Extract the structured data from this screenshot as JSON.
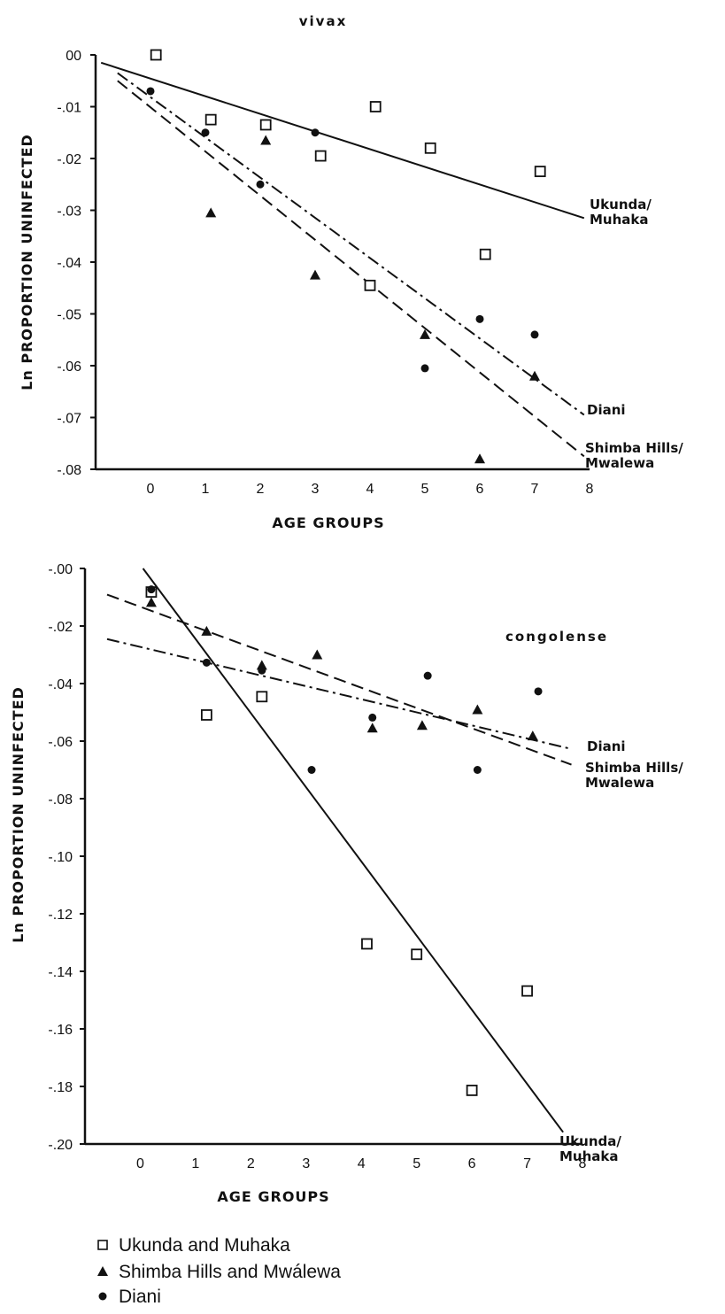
{
  "chart_data": [
    {
      "type": "scatter",
      "title": "vivax",
      "xlabel": "AGE GROUPS",
      "ylabel": "Ln PROPORTION UNINFECTED",
      "xlim": [
        -1,
        8
      ],
      "ylim": [
        -0.08,
        0.0
      ],
      "x_ticks": [
        "0",
        "1",
        "2",
        "3",
        "4",
        "5",
        "6",
        "7",
        "8"
      ],
      "y_ticks": [
        "00",
        "-.01",
        "-.02",
        "-.03",
        "-.04",
        "-.05",
        "-.06",
        "-.07",
        "-.08"
      ],
      "grid": false,
      "series": [
        {
          "name": "Ukunda and Muhaka",
          "marker": "open-square",
          "points": [
            [
              0.1,
              0.0
            ],
            [
              1.1,
              -0.0125
            ],
            [
              2.1,
              -0.0135
            ],
            [
              3.1,
              -0.0195
            ],
            [
              4.1,
              -0.01
            ],
            [
              5.1,
              -0.018
            ],
            [
              6.1,
              -0.0385
            ],
            [
              7.1,
              -0.0225
            ],
            [
              4.0,
              -0.0445
            ]
          ]
        },
        {
          "name": "Shimba Hills and Mwalewa",
          "marker": "filled-triangle",
          "points": [
            [
              1.1,
              -0.0305
            ],
            [
              2.1,
              -0.0165
            ],
            [
              3.0,
              -0.0425
            ],
            [
              5.0,
              -0.054
            ],
            [
              6.0,
              -0.078
            ],
            [
              7.0,
              -0.062
            ]
          ]
        },
        {
          "name": "Diani",
          "marker": "filled-circle",
          "points": [
            [
              0.0,
              -0.007
            ],
            [
              1.0,
              -0.015
            ],
            [
              2.0,
              -0.025
            ],
            [
              3.0,
              -0.015
            ],
            [
              5.0,
              -0.0605
            ],
            [
              6.0,
              -0.051
            ],
            [
              7.0,
              -0.054
            ]
          ]
        }
      ],
      "fit_lines": [
        {
          "label_lines": [
            "Ukunda/",
            "Muhaka"
          ],
          "style": "solid",
          "from": [
            -0.9,
            -0.0015
          ],
          "to": [
            7.9,
            -0.0315
          ]
        },
        {
          "label_lines": [
            "Diani"
          ],
          "style": "dash-dot",
          "from": [
            -0.6,
            -0.0035
          ],
          "to": [
            7.9,
            -0.0695
          ]
        },
        {
          "label_lines": [
            "Shimba Hills/",
            "Mwalewa"
          ],
          "style": "dashed",
          "from": [
            -0.6,
            -0.005
          ],
          "to": [
            7.9,
            -0.0775
          ]
        }
      ]
    },
    {
      "type": "scatter",
      "title": "congolense",
      "xlabel": "AGE GROUPS",
      "ylabel": "Ln PROPORTION UNINFECTED",
      "xlim": [
        -1,
        8
      ],
      "ylim": [
        -0.22,
        0.0
      ],
      "x_ticks": [
        "0",
        "1",
        "2",
        "3",
        "4",
        "5",
        "6",
        "7",
        "8"
      ],
      "y_ticks": [
        "-.00",
        "-.02",
        "-.04",
        "-.06",
        "-.08",
        "-.10",
        "-.12",
        "-.14",
        "-.16",
        "-.18",
        "-.20"
      ],
      "grid": false,
      "series": [
        {
          "name": "Ukunda and Muhaka",
          "marker": "open-square",
          "points": [
            [
              0.2,
              -0.009
            ],
            [
              1.2,
              -0.056
            ],
            [
              2.2,
              -0.049
            ],
            [
              4.1,
              -0.1435
            ],
            [
              5.0,
              -0.1475
            ],
            [
              6.0,
              -0.1995
            ],
            [
              7.0,
              -0.1615
            ]
          ]
        },
        {
          "name": "Shimba Hills and Mwalewa",
          "marker": "filled-triangle",
          "points": [
            [
              0.2,
              -0.013
            ],
            [
              1.2,
              -0.024
            ],
            [
              2.2,
              -0.037
            ],
            [
              3.2,
              -0.033
            ],
            [
              4.2,
              -0.061
            ],
            [
              5.1,
              -0.06
            ],
            [
              6.1,
              -0.054
            ],
            [
              7.1,
              -0.064
            ]
          ]
        },
        {
          "name": "Diani",
          "marker": "filled-circle",
          "points": [
            [
              0.2,
              -0.008
            ],
            [
              1.2,
              -0.036
            ],
            [
              2.2,
              -0.039
            ],
            [
              3.1,
              -0.077
            ],
            [
              4.2,
              -0.057
            ],
            [
              5.2,
              -0.041
            ],
            [
              6.1,
              -0.077
            ],
            [
              7.2,
              -0.047
            ]
          ]
        }
      ],
      "fit_lines": [
        {
          "label_lines": [
            "Ukunda/",
            "Muhaka"
          ],
          "style": "solid",
          "from": [
            0.05,
            0.0
          ],
          "to": [
            7.65,
            -0.2155
          ]
        },
        {
          "label_lines": [
            "Diani"
          ],
          "style": "dash-dot",
          "from": [
            -0.6,
            -0.027
          ],
          "to": [
            7.8,
            -0.069
          ]
        },
        {
          "label_lines": [
            "Shimba Hills/",
            "Mwalewa"
          ],
          "style": "dashed",
          "from": [
            -0.6,
            -0.01
          ],
          "to": [
            7.8,
            -0.075
          ]
        }
      ]
    }
  ],
  "legend": [
    {
      "label": "Ukunda and Muhaka",
      "marker": "open-square"
    },
    {
      "label": "Shimba Hills and Mwálewa",
      "marker": "filled-triangle"
    },
    {
      "label": "Diani",
      "marker": "filled-circle"
    }
  ],
  "colors": {
    "ink": "#111111",
    "background": "#ffffff"
  }
}
